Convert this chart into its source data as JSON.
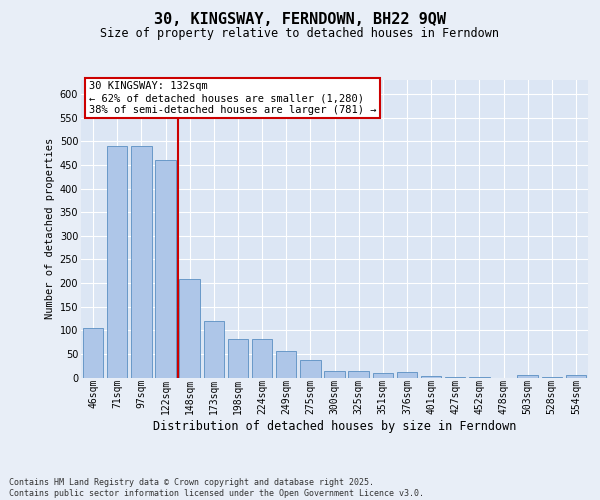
{
  "title": "30, KINGSWAY, FERNDOWN, BH22 9QW",
  "subtitle": "Size of property relative to detached houses in Ferndown",
  "xlabel": "Distribution of detached houses by size in Ferndown",
  "ylabel": "Number of detached properties",
  "categories": [
    "46sqm",
    "71sqm",
    "97sqm",
    "122sqm",
    "148sqm",
    "173sqm",
    "198sqm",
    "224sqm",
    "249sqm",
    "275sqm",
    "300sqm",
    "325sqm",
    "351sqm",
    "376sqm",
    "401sqm",
    "427sqm",
    "452sqm",
    "478sqm",
    "503sqm",
    "528sqm",
    "554sqm"
  ],
  "values": [
    105,
    490,
    490,
    460,
    208,
    120,
    82,
    82,
    57,
    38,
    14,
    14,
    10,
    12,
    3,
    2,
    2,
    0,
    5,
    2,
    5
  ],
  "bar_color": "#aec6e8",
  "bar_edge_color": "#5a8fc2",
  "vline_index": 3,
  "vline_color": "#cc0000",
  "annotation_text": "30 KINGSWAY: 132sqm\n← 62% of detached houses are smaller (1,280)\n38% of semi-detached houses are larger (781) →",
  "annotation_box_color": "#ffffff",
  "annotation_box_edge": "#cc0000",
  "bg_color": "#e8eef7",
  "plot_bg": "#dce6f4",
  "footer": "Contains HM Land Registry data © Crown copyright and database right 2025.\nContains public sector information licensed under the Open Government Licence v3.0.",
  "ylim": [
    0,
    630
  ],
  "yticks": [
    0,
    50,
    100,
    150,
    200,
    250,
    300,
    350,
    400,
    450,
    500,
    550,
    600
  ],
  "title_fontsize": 11,
  "subtitle_fontsize": 8.5,
  "ylabel_fontsize": 7.5,
  "xlabel_fontsize": 8.5,
  "tick_fontsize": 7,
  "annotation_fontsize": 7.5,
  "footer_fontsize": 6
}
